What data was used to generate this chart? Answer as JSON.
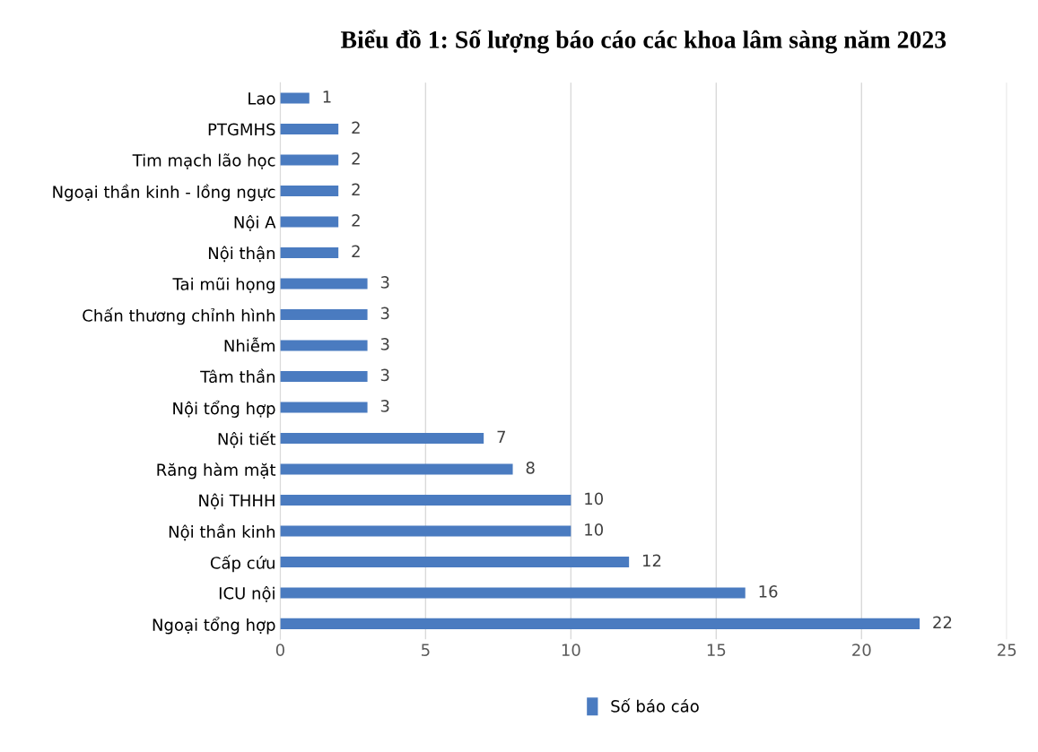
{
  "chart_data": {
    "type": "bar",
    "orientation": "horizontal",
    "title": "Biểu đồ 1: Số lượng báo cáo các khoa lâm sàng năm 2023",
    "categories": [
      "Lao",
      "PTGMHS",
      "Tim mạch lão học",
      "Ngoại thần kinh - lồng ngực",
      "Nội A",
      "Nội thận",
      "Tai mũi họng",
      "Chấn thương chỉnh hình",
      "Nhiễm",
      "Tâm thần",
      "Nội tổng hợp",
      "Nội tiết",
      "Răng hàm mặt",
      "Nội THHH",
      "Nội thần kinh",
      "Cấp cứu",
      "ICU nội",
      "Ngoại tổng hợp"
    ],
    "series": [
      {
        "name": "Số báo cáo",
        "color": "#4a7bc0",
        "values": [
          1,
          2,
          2,
          2,
          2,
          2,
          3,
          3,
          3,
          3,
          3,
          7,
          8,
          10,
          10,
          12,
          16,
          22
        ]
      }
    ],
    "xlim": [
      0,
      25
    ],
    "xticks": [
      0,
      5,
      10,
      15,
      20,
      25
    ],
    "grid": "x",
    "legend": "bottom",
    "data_labels": true
  }
}
